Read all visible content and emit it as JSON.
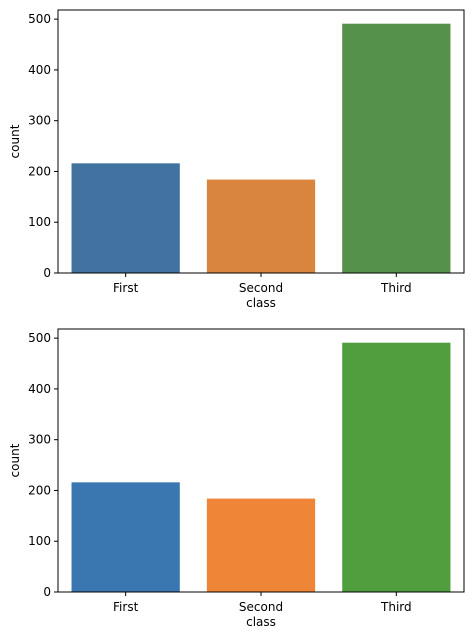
{
  "chart_data": [
    {
      "type": "bar",
      "categories": [
        "First",
        "Second",
        "Third"
      ],
      "values": [
        216,
        184,
        491
      ],
      "colors": [
        "#4272a0",
        "#da853e",
        "#55914b"
      ],
      "xlabel": "class",
      "ylabel": "count",
      "ylim": [
        0,
        518
      ],
      "yticks": [
        0,
        100,
        200,
        300,
        400,
        500
      ],
      "grid": false
    },
    {
      "type": "bar",
      "categories": [
        "First",
        "Second",
        "Third"
      ],
      "values": [
        216,
        184,
        491
      ],
      "colors": [
        "#3a76af",
        "#ef8536",
        "#519e3e"
      ],
      "xlabel": "class",
      "ylabel": "count",
      "ylim": [
        0,
        518
      ],
      "yticks": [
        0,
        100,
        200,
        300,
        400,
        500
      ],
      "grid": false
    }
  ]
}
